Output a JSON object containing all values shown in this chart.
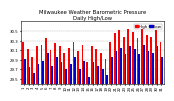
{
  "title": "Milwaukee Weather Barometric Pressure",
  "subtitle": "Daily High/Low",
  "high_values": [
    30.28,
    30.12,
    29.95,
    30.18,
    30.22,
    30.35,
    30.1,
    30.25,
    30.18,
    30.05,
    30.15,
    30.28,
    30.08,
    30.22,
    29.85,
    30.18,
    30.12,
    30.05,
    29.92,
    30.28,
    30.45,
    30.52,
    30.38,
    30.55,
    30.48,
    30.35,
    30.55,
    30.42,
    30.38,
    30.52,
    30.28
  ],
  "low_values": [
    29.92,
    29.75,
    29.62,
    29.82,
    29.88,
    30.05,
    29.78,
    29.95,
    29.85,
    29.72,
    29.82,
    29.95,
    29.72,
    29.88,
    29.55,
    29.85,
    29.78,
    29.72,
    29.58,
    29.95,
    30.08,
    30.15,
    30.02,
    30.18,
    30.12,
    30.02,
    30.22,
    30.08,
    30.05,
    30.18,
    29.95
  ],
  "x_labels": [
    "1",
    "2",
    "3",
    "4",
    "5",
    "6",
    "7",
    "8",
    "9",
    "10",
    "11",
    "12",
    "13",
    "14",
    "15",
    "16",
    "17",
    "18",
    "19",
    "20",
    "21",
    "22",
    "23",
    "24",
    "25",
    "26",
    "27",
    "28",
    "29",
    "30",
    "31"
  ],
  "high_color": "#ff0000",
  "low_color": "#0000cc",
  "ybase": 29.4,
  "ylim": [
    29.4,
    30.7
  ],
  "yticks": [
    29.5,
    29.7,
    29.9,
    30.1,
    30.3,
    30.5
  ],
  "ytick_labels": [
    "29.5",
    "29.7",
    "29.9",
    "30.1",
    "30.3",
    "30.5"
  ],
  "background_color": "#ffffff",
  "bar_width": 0.38,
  "title_fontsize": 3.8,
  "tick_fontsize": 2.8,
  "legend_fontsize": 3.0
}
